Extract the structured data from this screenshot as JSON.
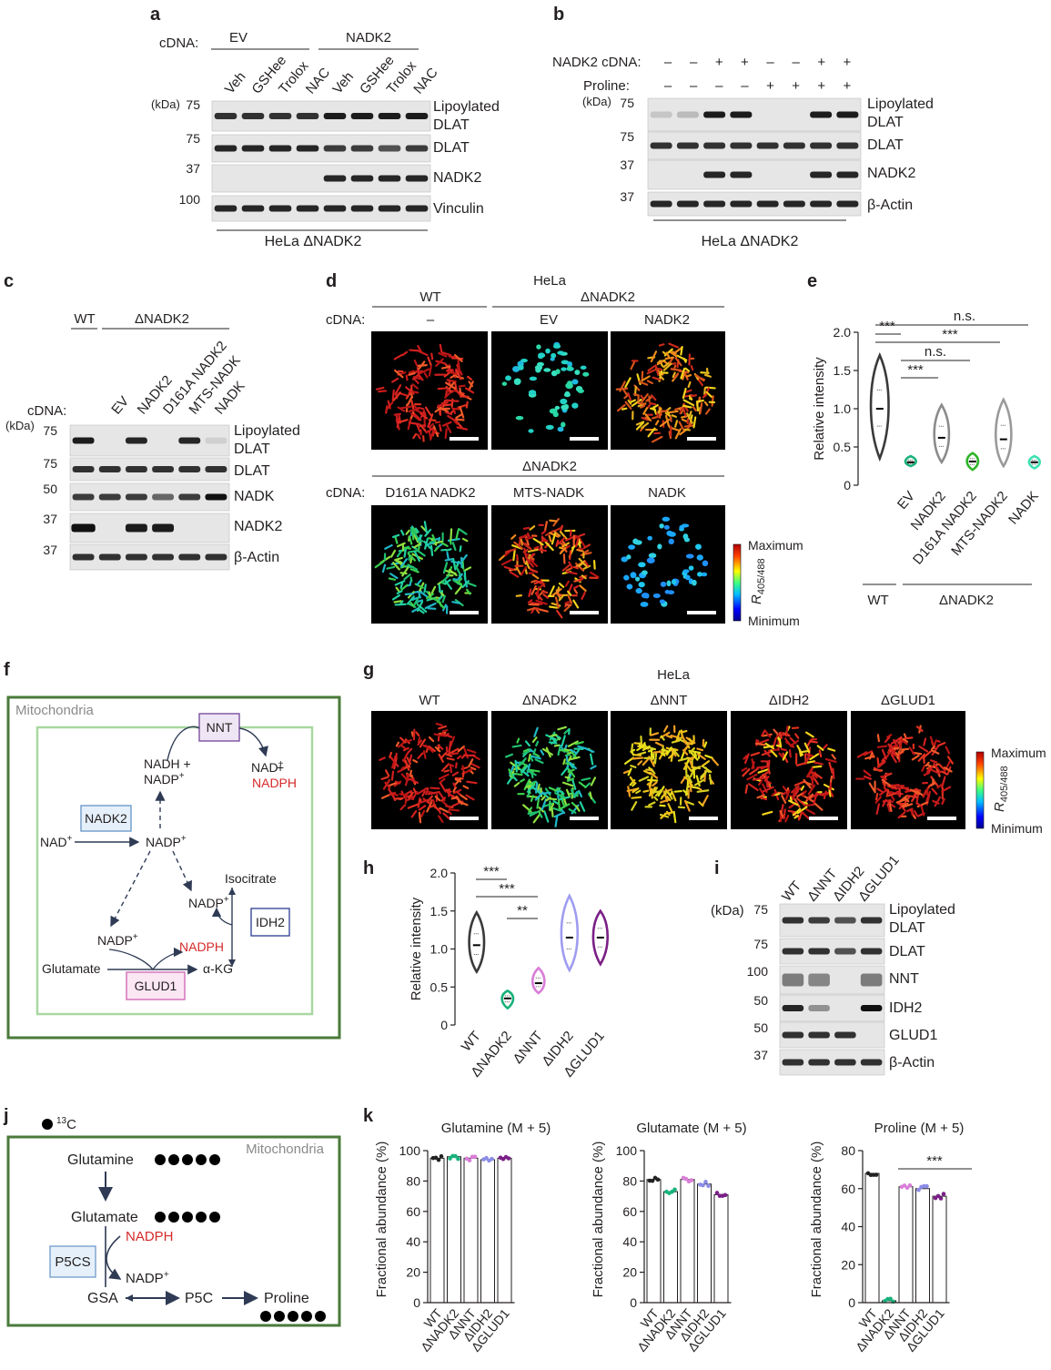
{
  "panels": {
    "a": {
      "letter": "a",
      "cdna_prefix": "cDNA:",
      "groups": [
        "EV",
        "NADK2"
      ],
      "lanes": [
        "Veh",
        "GSHee",
        "Trolox",
        "NAC",
        "Veh",
        "GSHee",
        "Trolox",
        "NAC"
      ],
      "kda_label": "(kDa)",
      "blots": [
        {
          "label": "Lipoylated\nDLAT",
          "marker": "75"
        },
        {
          "label": "DLAT",
          "marker": "75"
        },
        {
          "label": "NADK2",
          "marker": "37"
        },
        {
          "label": "Vinculin",
          "marker": "100"
        }
      ],
      "cell_line": "HeLa ΔNADK2"
    },
    "b": {
      "letter": "b",
      "row_labels": [
        "NADK2 cDNA:",
        "Proline:"
      ],
      "nadk2_cdna": [
        "–",
        "–",
        "+",
        "+",
        "–",
        "–",
        "+",
        "+"
      ],
      "proline": [
        "–",
        "–",
        "–",
        "–",
        "+",
        "+",
        "+",
        "+"
      ],
      "kda_label": "(kDa)",
      "blots": [
        {
          "label": "Lipoylated\nDLAT",
          "marker": "75"
        },
        {
          "label": "DLAT",
          "marker": "75"
        },
        {
          "label": "NADK2",
          "marker": "37"
        },
        {
          "label": "β-Actin",
          "marker": "37"
        }
      ],
      "cell_line": "HeLa ΔNADK2"
    },
    "c": {
      "letter": "c",
      "groups": [
        "WT",
        "ΔNADK2"
      ],
      "cdna_prefix": "cDNA:",
      "lanes": [
        "EV",
        "NADK2",
        "D161A NADK2",
        "MTS-NADK",
        "NADK"
      ],
      "kda_label": "(kDa)",
      "blots": [
        {
          "label": "Lipoylated\nDLAT",
          "marker": "75"
        },
        {
          "label": "DLAT",
          "marker": "75"
        },
        {
          "label": "NADK",
          "marker": "50"
        },
        {
          "label": "NADK2",
          "marker": "37"
        },
        {
          "label": "β-Actin",
          "marker": "37"
        }
      ]
    },
    "d": {
      "letter": "d",
      "cell": "HeLa",
      "top_groups": [
        "WT",
        "ΔNADK2"
      ],
      "cdna_prefix": "cDNA:",
      "top_labels": [
        "–",
        "EV",
        "NADK2"
      ],
      "bottom_group": "ΔNADK2",
      "bottom_labels": [
        "D161A NADK2",
        "MTS-NADK",
        "NADK"
      ],
      "colorbar": {
        "max": "Maximum",
        "min": "Minimum",
        "label": "R405/488"
      }
    },
    "e": {
      "letter": "e",
      "ylabel": "Relative intensity",
      "yticks": [
        "0",
        "0.5",
        "1.0",
        "1.5",
        "2.0"
      ],
      "categories": [
        "",
        "EV",
        "NADK2",
        "D161A NADK2",
        "MTS-NADK2",
        "NADK"
      ],
      "groups": [
        "WT",
        "ΔNADK2"
      ],
      "significance": [
        "***",
        "***",
        "n.s.",
        "***",
        "n.s."
      ]
    },
    "f": {
      "letter": "f",
      "compartment": "Mitochondria",
      "enzymes": [
        "NNT",
        "NADK2",
        "IDH2",
        "GLUD1"
      ],
      "nodes": {
        "nadh_nadp": [
          "NADH +",
          "NADP"
        ],
        "nad_nadph": [
          "NAD",
          " +",
          "NADPH"
        ],
        "nad": "NAD",
        "nadp_center": "NADP",
        "isocitrate": "Isocitrate",
        "nadp_right": "NADP",
        "nadph_right": "NADPH",
        "nadp_left": "NADP",
        "glutamate": "Glutamate",
        "akg": "α-KG",
        "plus": "+"
      }
    },
    "g": {
      "letter": "g",
      "cell": "HeLa",
      "labels": [
        "WT",
        "ΔNADK2",
        "ΔNNT",
        "ΔIDH2",
        "ΔGLUD1"
      ],
      "colorbar": {
        "max": "Maximum",
        "min": "Minimum",
        "label": "R405/488"
      }
    },
    "h": {
      "letter": "h",
      "ylabel": "Relative intensity",
      "yticks": [
        "0",
        "0.5",
        "1.0",
        "1.5",
        "2.0"
      ],
      "categories": [
        "WT",
        "ΔNADK2",
        "ΔNNT",
        "ΔIDH2",
        "ΔGLUD1"
      ],
      "significance": [
        "***",
        "***",
        "**"
      ]
    },
    "i": {
      "letter": "i",
      "lanes": [
        "WT",
        "ΔNNT",
        "ΔIDH2",
        "ΔGLUD1"
      ],
      "kda_label": "(kDa)",
      "blots": [
        {
          "label": "Lipoylated\nDLAT",
          "marker": "75"
        },
        {
          "label": "DLAT",
          "marker": "75"
        },
        {
          "label": "NNT",
          "marker": "100"
        },
        {
          "label": "IDH2",
          "marker": "50"
        },
        {
          "label": "GLUD1",
          "marker": "50"
        },
        {
          "label": "β-Actin",
          "marker": "37"
        }
      ]
    },
    "j": {
      "letter": "j",
      "tracer": "13C",
      "compartment": "Mitochondria",
      "nodes": {
        "glutamine": "Glutamine",
        "glutamate": "Glutamate",
        "nadph": "NADPH",
        "nadp": "NADP",
        "p5cs": "P5CS",
        "gsa": "GSA",
        "p5c": "P5C",
        "proline": "Proline"
      }
    },
    "k": {
      "letter": "k"
    }
  },
  "chart_data": [
    {
      "panel": "e",
      "type": "violin",
      "title": "",
      "xlabel": "",
      "ylabel": "Relative intensity",
      "ylim": [
        0,
        2.0
      ],
      "categories": [
        "WT",
        "ΔNADK2 + EV",
        "ΔNADK2 + NADK2",
        "ΔNADK2 + D161A NADK2",
        "ΔNADK2 + MTS-NADK2",
        "ΔNADK2 + NADK"
      ],
      "medians": [
        1.0,
        0.3,
        0.62,
        0.31,
        0.6,
        0.3
      ],
      "ranges": [
        [
          0.35,
          1.7
        ],
        [
          0.25,
          0.38
        ],
        [
          0.3,
          1.05
        ],
        [
          0.2,
          0.42
        ],
        [
          0.25,
          1.12
        ],
        [
          0.22,
          0.38
        ]
      ],
      "colors": [
        "#3a3a3a",
        "#19b27b",
        "#8b8b8b",
        "#2fb52a",
        "#9a9a9a",
        "#3de0b0"
      ]
    },
    {
      "panel": "h",
      "type": "violin",
      "title": "",
      "xlabel": "",
      "ylabel": "Relative intensity",
      "ylim": [
        0,
        2.0
      ],
      "categories": [
        "WT",
        "ΔNADK2",
        "ΔNNT",
        "ΔIDH2",
        "ΔGLUD1"
      ],
      "medians": [
        1.05,
        0.35,
        0.55,
        1.15,
        1.15
      ],
      "ranges": [
        [
          0.7,
          1.48
        ],
        [
          0.22,
          0.45
        ],
        [
          0.42,
          0.75
        ],
        [
          0.72,
          1.7
        ],
        [
          0.8,
          1.5
        ]
      ],
      "colors": [
        "#3a3a3a",
        "#19b27b",
        "#d97fd8",
        "#9e9cf0",
        "#7a1f86"
      ]
    },
    {
      "panel": "k",
      "type": "bar",
      "title": "Glutamine (M + 5)",
      "xlabel": "",
      "ylabel": "Fractional abundance (%)",
      "ylim": [
        0,
        100
      ],
      "yticks": [
        "0",
        "20",
        "40",
        "60",
        "80",
        "100"
      ],
      "categories": [
        "WT",
        "ΔNADK2",
        "ΔNNT",
        "ΔIDH2",
        "ΔGLUD1"
      ],
      "values": [
        95,
        96,
        95,
        94,
        95
      ],
      "colors": [
        "#222222",
        "#19b27b",
        "#d97fd8",
        "#8b8be8",
        "#7a1f86"
      ]
    },
    {
      "panel": "k",
      "type": "bar",
      "title": "Glutamate (M + 5)",
      "xlabel": "",
      "ylabel": "Fractional abundance (%)",
      "ylim": [
        0,
        100
      ],
      "yticks": [
        "0",
        "20",
        "40",
        "60",
        "80",
        "100"
      ],
      "categories": [
        "WT",
        "ΔNADK2",
        "ΔNNT",
        "ΔIDH2",
        "ΔGLUD1"
      ],
      "values": [
        81,
        73,
        81,
        78,
        71
      ],
      "colors": [
        "#222222",
        "#19b27b",
        "#d97fd8",
        "#8b8be8",
        "#7a1f86"
      ]
    },
    {
      "panel": "k",
      "type": "bar",
      "title": "Proline (M + 5)",
      "xlabel": "",
      "ylabel": "Fractional abundance (%)",
      "ylim": [
        0,
        80
      ],
      "yticks": [
        "0",
        "20",
        "40",
        "60",
        "80"
      ],
      "categories": [
        "WT",
        "ΔNADK2",
        "ΔNNT",
        "ΔIDH2",
        "ΔGLUD1"
      ],
      "values": [
        68,
        1,
        61,
        60,
        56
      ],
      "significance": "***",
      "colors": [
        "#222222",
        "#19b27b",
        "#d97fd8",
        "#8b8be8",
        "#7a1f86"
      ]
    }
  ]
}
